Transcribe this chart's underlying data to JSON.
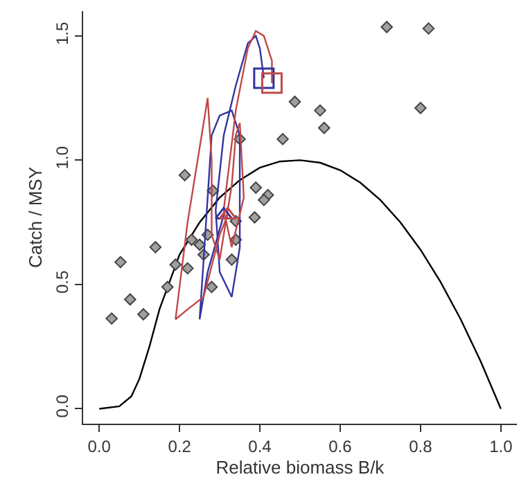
{
  "chart_data": {
    "type": "scatter",
    "xlabel": "Relative biomass B/k",
    "ylabel": "Catch / MSY",
    "xlim": [
      -0.04,
      1.04
    ],
    "ylim": [
      -0.06,
      1.6
    ],
    "xticks": [
      {
        "value": 0,
        "label": "0.0"
      },
      {
        "value": 0.2,
        "label": "0.2"
      },
      {
        "value": 0.4,
        "label": "0.4"
      },
      {
        "value": 0.6,
        "label": "0.6"
      },
      {
        "value": 0.8,
        "label": "0.8"
      },
      {
        "value": 1,
        "label": "1.0"
      }
    ],
    "yticks": [
      {
        "value": 0,
        "label": "0.0"
      },
      {
        "value": 0.5,
        "label": "0.5"
      },
      {
        "value": 1,
        "label": "1.0"
      },
      {
        "value": 1.5,
        "label": "1.5"
      }
    ],
    "legend": false,
    "series": [
      {
        "type": "line",
        "color": "#000000",
        "marker": "none",
        "x": [
          0,
          0.05,
          0.08,
          0.1,
          0.125,
          0.15,
          0.2,
          0.25,
          0.3,
          0.35,
          0.4,
          0.45,
          0.5,
          0.55,
          0.6,
          0.65,
          0.7,
          0.75,
          0.8,
          0.85,
          0.9,
          0.95,
          1.0
        ],
        "values": [
          0,
          0.01,
          0.05,
          0.12,
          0.25,
          0.4,
          0.62,
          0.75,
          0.85,
          0.92,
          0.97,
          0.995,
          1.0,
          0.99,
          0.96,
          0.91,
          0.84,
          0.75,
          0.64,
          0.51,
          0.36,
          0.19,
          0.0
        ]
      },
      {
        "color": "#a0a0a0",
        "marker": "diamond",
        "x": [
          0.716,
          0.82,
          0.8,
          0.487,
          0.55,
          0.56,
          0.457,
          0.35,
          0.213,
          0.283,
          0.39,
          0.42,
          0.41,
          0.387,
          0.34,
          0.14,
          0.053,
          0.19,
          0.22,
          0.17,
          0.077,
          0.11,
          0.031,
          0.28,
          0.33,
          0.24,
          0.23,
          0.25,
          0.26,
          0.27,
          0.34
        ],
        "values": [
          1.536,
          1.53,
          1.21,
          1.235,
          1.2,
          1.13,
          1.085,
          1.085,
          0.94,
          0.877,
          0.89,
          0.86,
          0.84,
          0.77,
          0.755,
          0.65,
          0.59,
          0.58,
          0.565,
          0.49,
          0.44,
          0.38,
          0.363,
          0.49,
          0.6,
          null,
          0.68,
          0.66,
          0.62,
          0.7,
          0.68
        ]
      },
      {
        "type": "line",
        "color": "#3333a0",
        "marker": "none",
        "x": [
          0.31,
          0.27,
          0.25,
          0.26,
          0.28,
          0.3,
          0.33,
          0.35,
          0.35,
          0.33,
          0.3,
          0.29,
          0.31,
          0.34,
          0.37,
          0.39,
          0.4,
          0.41
        ],
        "values": [
          0.78,
          0.55,
          0.36,
          0.6,
          1.1,
          1.18,
          1.2,
          1.1,
          0.65,
          0.45,
          0.55,
          0.8,
          1.1,
          1.3,
          1.47,
          1.5,
          1.45,
          1.33
        ]
      },
      {
        "type": "line",
        "color": "#c04848",
        "marker": "none",
        "x": [
          0.32,
          0.3,
          0.26,
          0.22,
          0.19,
          0.22,
          0.25,
          0.27,
          0.28,
          0.28,
          0.3,
          0.33,
          0.34,
          0.35,
          0.36,
          0.33,
          0.31,
          0.34,
          0.37,
          0.39,
          0.41,
          0.43,
          0.43
        ],
        "values": [
          0.78,
          0.7,
          0.45,
          0.4,
          0.36,
          0.75,
          1.05,
          1.25,
          1.0,
          0.7,
          0.6,
          0.9,
          1.1,
          1.15,
          0.85,
          0.65,
          0.8,
          1.2,
          1.45,
          1.52,
          1.5,
          1.4,
          1.31
        ]
      },
      {
        "color": "#3333a0",
        "marker": "triangle",
        "x": [
          0.31
        ],
        "values": [
          0.78
        ]
      },
      {
        "color": "#c04848",
        "marker": "triangle",
        "x": [
          0.32
        ],
        "values": [
          0.78
        ]
      },
      {
        "color": "#3333a0",
        "marker": "square",
        "x": [
          0.41
        ],
        "values": [
          1.33
        ]
      },
      {
        "color": "#c04848",
        "marker": "square",
        "x": [
          0.43
        ],
        "values": [
          1.31
        ]
      }
    ]
  }
}
